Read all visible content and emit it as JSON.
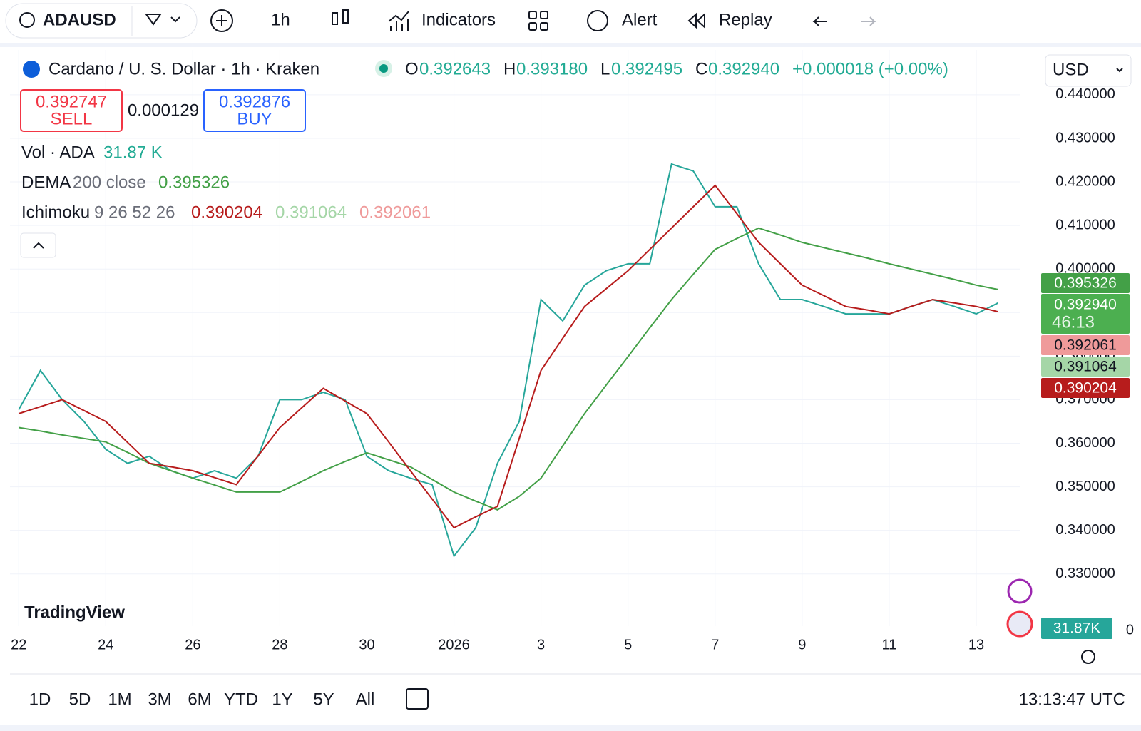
{
  "toolbar": {
    "symbol": "ADAUSD",
    "interval": "1h",
    "indicators": "Indicators",
    "alert": "Alert",
    "replay": "Replay"
  },
  "legend": {
    "title": "Cardano / U. S. Dollar · 1h · Kraken",
    "ohlc": [
      {
        "label": "O",
        "value": "0.392643"
      },
      {
        "label": "H",
        "value": "0.393180"
      },
      {
        "label": "L",
        "value": "0.392495"
      },
      {
        "label": "C",
        "value": "0.392940"
      }
    ],
    "change": "+0.000018 (+0.00%)",
    "sell": {
      "price": "0.392747",
      "label": "SELL"
    },
    "spread": "0.000129",
    "buy": {
      "price": "0.392876",
      "label": "BUY"
    },
    "volume": {
      "label": "Vol · ADA",
      "value": "31.87 K"
    },
    "dema": {
      "label": "DEMA",
      "params": "200 close",
      "value": "0.395326"
    },
    "ichimoku": {
      "label": "Ichimoku",
      "params": "9 26 52 26",
      "values": [
        "0.390204",
        "0.391064",
        "0.392061"
      ]
    }
  },
  "currency": "USD",
  "price_labels": {
    "dema": "0.395326",
    "close": "0.392940",
    "countdown": "46:13",
    "lagging": "0.392061",
    "base": "0.391064",
    "conversion": "0.390204",
    "volume": "31.87K",
    "volume_zero": "0"
  },
  "watermark": "TradingView",
  "chart_data": {
    "type": "line",
    "x": [
      0,
      0.5,
      1,
      1.5,
      2,
      2.5,
      3,
      3.5,
      4,
      4.5,
      5,
      5.5,
      6,
      6.5,
      7,
      7.5,
      8,
      8.5,
      9,
      9.5,
      10,
      10.5,
      11,
      11.5,
      12,
      12.5,
      13,
      13.5,
      14,
      14.5,
      15,
      15.5,
      16,
      16.5,
      17,
      17.5,
      18,
      18.5,
      19,
      19.5,
      20,
      20.5,
      21,
      21.5,
      22,
      22.5
    ],
    "xlim": [
      -0.2,
      23.0
    ],
    "xticks": [
      {
        "value": 0,
        "label": "22"
      },
      {
        "value": 2,
        "label": "24"
      },
      {
        "value": 4,
        "label": "26"
      },
      {
        "value": 6,
        "label": "28"
      },
      {
        "value": 8,
        "label": "30"
      },
      {
        "value": 10,
        "label": "2026"
      },
      {
        "value": 12,
        "label": "3"
      },
      {
        "value": 14,
        "label": "5"
      },
      {
        "value": 16,
        "label": "7"
      },
      {
        "value": 18,
        "label": "9"
      },
      {
        "value": 20,
        "label": "11"
      },
      {
        "value": 22,
        "label": "13"
      }
    ],
    "ylim": [
      0.318,
      0.4503
    ],
    "yticks": [
      {
        "value": 0.33,
        "label": "0.330000"
      },
      {
        "value": 0.34,
        "label": "0.340000"
      },
      {
        "value": 0.35,
        "label": "0.350000"
      },
      {
        "value": 0.36,
        "label": "0.360000"
      },
      {
        "value": 0.37,
        "label": "0.370000"
      },
      {
        "value": 0.38,
        "label": "0.380000"
      },
      {
        "value": 0.39,
        "label": "0.390000"
      },
      {
        "value": 0.4,
        "label": "0.400000"
      },
      {
        "value": 0.41,
        "label": "0.410000"
      },
      {
        "value": 0.42,
        "label": "0.420000"
      },
      {
        "value": 0.43,
        "label": "0.430000"
      },
      {
        "value": 0.44,
        "label": "0.440000"
      }
    ],
    "grid": true,
    "series": [
      {
        "color": "#26a69a",
        "values": [
          0.3677,
          0.3767,
          0.37,
          0.365,
          0.3586,
          0.3554,
          0.357,
          0.3537,
          0.352,
          0.3537,
          0.352,
          0.357,
          0.37,
          0.37,
          0.3717,
          0.37,
          0.357,
          0.3537,
          0.352,
          0.3505,
          0.3341,
          0.3406,
          0.3554,
          0.365,
          0.393,
          0.3881,
          0.3963,
          0.3996,
          0.4012,
          0.4012,
          0.4241,
          0.4225,
          0.4143,
          0.4143,
          0.4012,
          0.393,
          0.393,
          0.3914,
          0.3897,
          0.3897,
          0.3897,
          0.3914,
          0.393,
          0.3914,
          0.3897,
          0.3922
        ]
      },
      {
        "color": "#43a047",
        "values": [
          0.3636,
          0.3628,
          0.3619,
          0.3611,
          0.3603,
          0.3579,
          0.3554,
          0.3537,
          0.352,
          0.3504,
          0.3488,
          0.3488,
          0.3488,
          0.3512,
          0.3537,
          0.3558,
          0.3578,
          0.3562,
          0.3546,
          0.3517,
          0.3488,
          0.3467,
          0.3447,
          0.3478,
          0.352,
          0.3594,
          0.3668,
          0.3734,
          0.3799,
          0.3865,
          0.393,
          0.3988,
          0.4045,
          0.407,
          0.4094,
          0.4078,
          0.4061,
          0.4049,
          0.4037,
          0.4025,
          0.4012,
          0.4,
          0.3988,
          0.3976,
          0.3963,
          0.3953
        ]
      },
      {
        "color": "#b71c1c",
        "values": [
          0.3668,
          0.3684,
          0.37,
          0.3675,
          0.365,
          0.3602,
          0.3554,
          0.3546,
          0.3537,
          0.3521,
          0.3505,
          0.3571,
          0.3636,
          0.3681,
          0.3726,
          0.3697,
          0.3668,
          0.3603,
          0.3537,
          0.3472,
          0.3406,
          0.3431,
          0.3455,
          0.3611,
          0.3767,
          0.3841,
          0.3914,
          0.3955,
          0.3996,
          0.4045,
          0.4094,
          0.4143,
          0.4192,
          0.4127,
          0.4061,
          0.4012,
          0.3963,
          0.3939,
          0.3914,
          0.3906,
          0.3897,
          0.3914,
          0.393,
          0.3922,
          0.3914,
          0.3902
        ]
      }
    ]
  },
  "ranges": [
    "1D",
    "5D",
    "1M",
    "3M",
    "6M",
    "YTD",
    "1Y",
    "5Y",
    "All"
  ],
  "clock": "13:13:47 UTC"
}
